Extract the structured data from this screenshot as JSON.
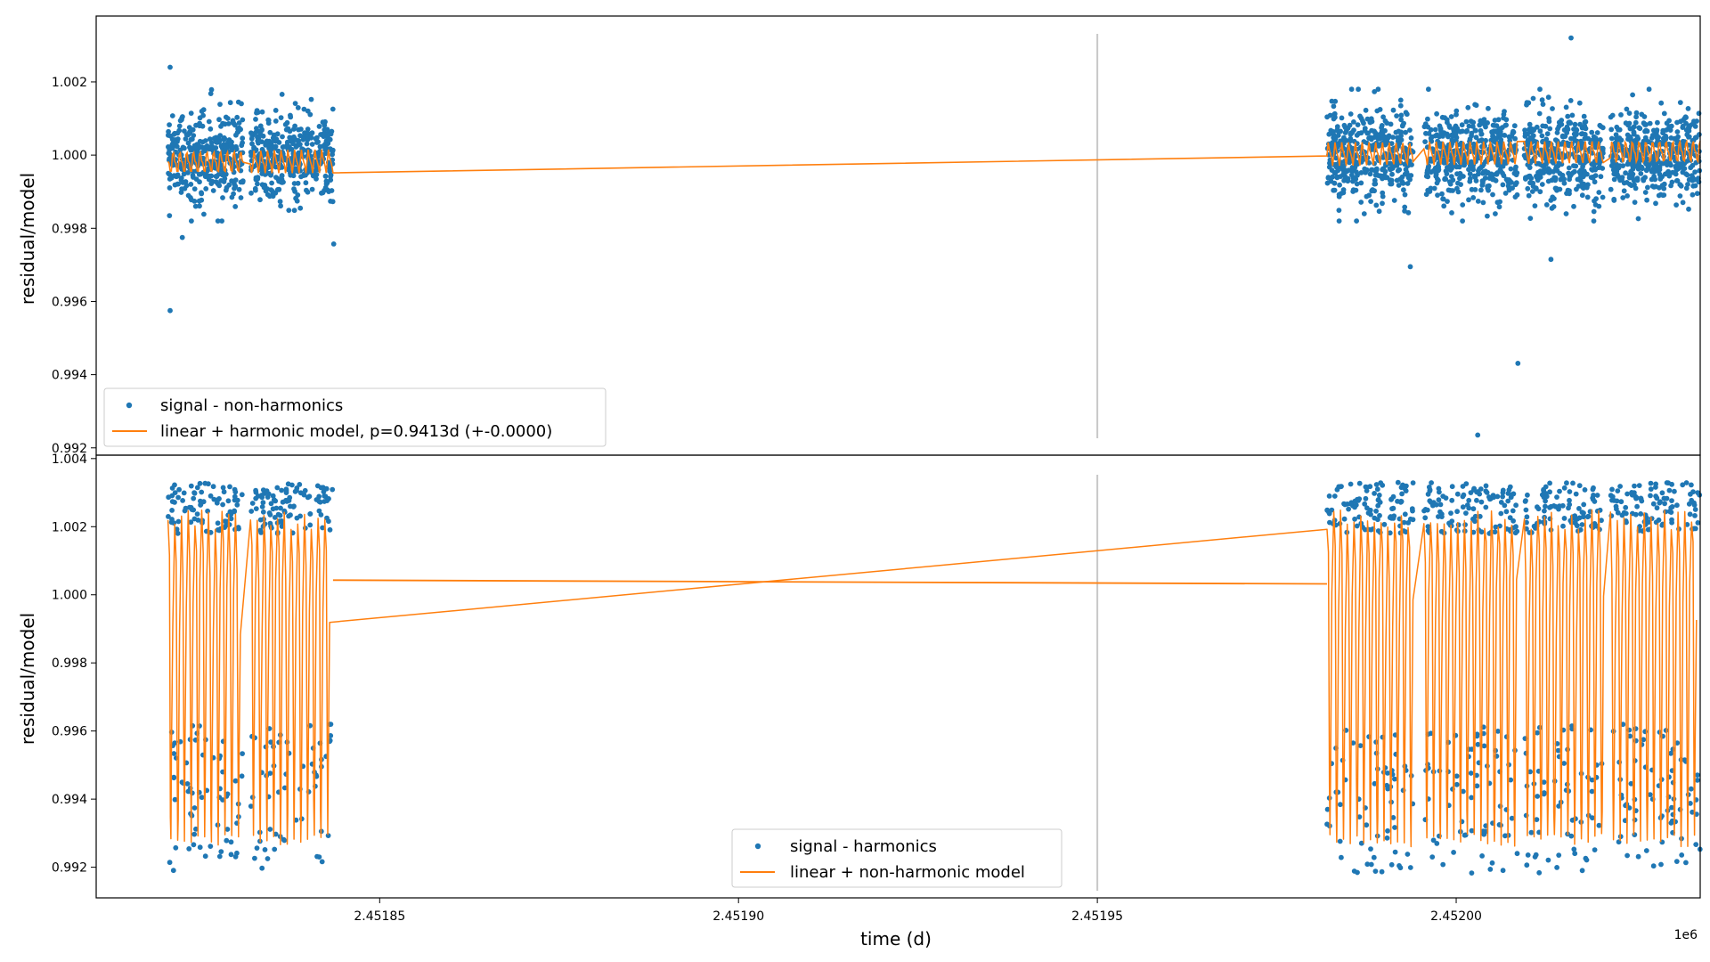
{
  "colors": {
    "signal": "#1f77b4",
    "model": "#ff7f0e",
    "marker_line": "#c8c8c8"
  },
  "chart_data": [
    {
      "type": "scatter",
      "panel": "top",
      "ylabel": "residual/model",
      "xlim": [
        2451810.5,
        2452034.0
      ],
      "ylim": [
        0.9918,
        1.0038
      ],
      "yticks": [
        "0.992",
        "0.994",
        "0.996",
        "0.998",
        "1.000",
        "1.002"
      ],
      "ytick_values": [
        0.992,
        0.994,
        0.996,
        0.998,
        1.0,
        1.002
      ],
      "vertical_marker_x": 2451950.0,
      "legend_position": "lower left",
      "series": [
        {
          "name": "signal - non-harmonics",
          "kind": "scatter",
          "segments": [
            [
              2451820.5,
              2451831.0
            ],
            [
              2451832.0,
              2451843.5
            ],
            [
              2451982.0,
              2451994.0
            ],
            [
              2451995.5,
              2452008.5
            ],
            [
              2452009.5,
              2452020.5
            ],
            [
              2452021.5,
              2452034.0
            ]
          ],
          "center": 1.0,
          "scatter_sd": 0.0006,
          "outliers": [
            {
              "x": 2451820.8,
              "y": 0.99575
            },
            {
              "x": 2451820.8,
              "y": 1.0024
            },
            {
              "x": 2451822.5,
              "y": 0.99775
            },
            {
              "x": 2451843.6,
              "y": 0.99757
            },
            {
              "x": 2451993.6,
              "y": 0.99695
            },
            {
              "x": 2452003.0,
              "y": 0.99235
            },
            {
              "x": 2452008.6,
              "y": 0.99431
            },
            {
              "x": 2452016.0,
              "y": 1.0032
            },
            {
              "x": 2452013.2,
              "y": 0.99715
            }
          ]
        },
        {
          "name": "linear + harmonic model, p=0.9413d (+-0.0000)",
          "kind": "line",
          "amplitude": 0.00025,
          "linear": [
            [
              2451820.5,
              0.9998
            ],
            [
              2452034.0,
              1.0001
            ]
          ]
        }
      ]
    },
    {
      "type": "scatter",
      "panel": "bottom",
      "xlabel": "time (d)",
      "ylabel": "residual/model",
      "x_offset_label": "1e6",
      "xlim": [
        2451810.5,
        2452034.0
      ],
      "ylim": [
        0.9911,
        1.0041
      ],
      "xticks": [
        "2.45185",
        "2.45190",
        "2.45195",
        "2.45200"
      ],
      "xtick_values": [
        2451850,
        2451900,
        2451950,
        2452000
      ],
      "yticks": [
        "0.992",
        "0.994",
        "0.996",
        "0.998",
        "1.000",
        "1.002",
        "1.004"
      ],
      "ytick_values": [
        0.992,
        0.994,
        0.996,
        0.998,
        1.0,
        1.002,
        1.004
      ],
      "vertical_marker_x": 2451950.0,
      "legend_position": "lower center",
      "series": [
        {
          "name": "signal - harmonics",
          "kind": "scatter",
          "upper_band": [
            1.0018,
            1.0033
          ],
          "lower_band": [
            0.9918,
            0.9962
          ],
          "period_days": 0.9413
        },
        {
          "name": "linear + non-harmonic model",
          "kind": "line",
          "upper_envelope": 1.0025,
          "lower_envelope": 0.9926,
          "linear": [
            [
              2451843.5,
              1.00043
            ],
            [
              2451982.0,
              1.00032
            ]
          ]
        }
      ]
    }
  ]
}
